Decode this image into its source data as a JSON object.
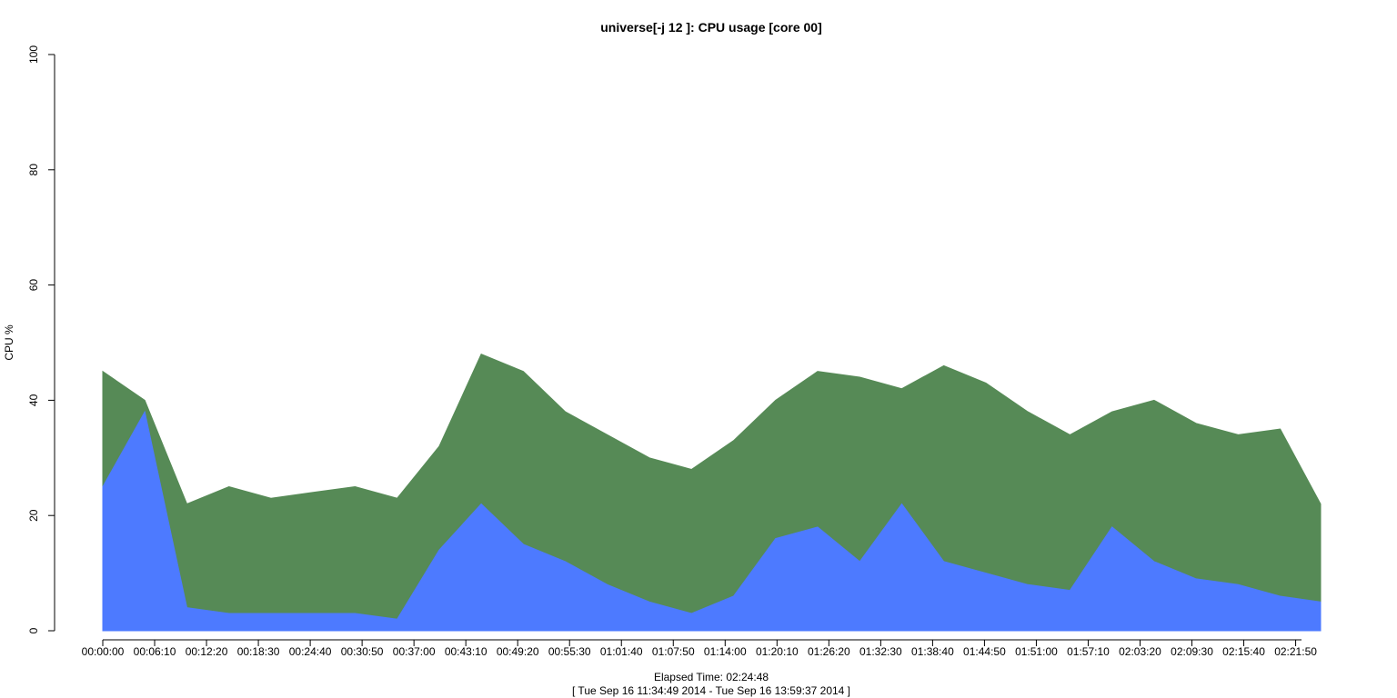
{
  "chart_data": {
    "type": "area",
    "title": "universe[-j 12  ]: CPU usage [core 00]",
    "ylabel": "CPU %",
    "xlabel": "Elapsed Time: 02:24:48",
    "xlabel_range": "[ Tue Sep 16 11:34:49 2014 - Tue Sep 16 13:59:37 2014 ]",
    "ylim": [
      0,
      100
    ],
    "yticks": [
      0,
      20,
      40,
      60,
      80,
      100
    ],
    "x_range_seconds": [
      0,
      8688
    ],
    "xticks": [
      "00:00:00",
      "00:06:10",
      "00:12:20",
      "00:18:30",
      "00:24:40",
      "00:30:50",
      "00:37:00",
      "00:43:10",
      "00:49:20",
      "00:55:30",
      "01:01:40",
      "01:07:50",
      "01:14:00",
      "01:20:10",
      "01:26:20",
      "01:32:30",
      "01:38:40",
      "01:44:50",
      "01:51:00",
      "01:57:10",
      "02:03:20",
      "02:09:30",
      "02:15:40",
      "02:21:50"
    ],
    "grid": false,
    "legend": "none",
    "colors": {
      "total": "#568a56",
      "user": "#4d7aff",
      "accent": "#22ccdd"
    },
    "series": [
      {
        "x": [
          0,
          300,
          600,
          900,
          1200,
          1500,
          1800,
          2100,
          2400,
          2700,
          3000,
          3300,
          3600,
          3900,
          4200,
          4500,
          4800,
          5100,
          5400,
          5700,
          6000,
          6300,
          6600,
          6900,
          7200,
          7500,
          7800,
          8100,
          8400,
          8688
        ],
        "values": [
          45,
          40,
          22,
          25,
          23,
          24,
          25,
          23,
          32,
          48,
          45,
          38,
          34,
          30,
          28,
          33,
          40,
          45,
          44,
          42,
          46,
          43,
          38,
          34,
          38,
          40,
          36,
          34,
          35,
          22
        ]
      },
      {
        "x": [
          0,
          300,
          600,
          900,
          1200,
          1500,
          1800,
          2100,
          2400,
          2700,
          3000,
          3300,
          3600,
          3900,
          4200,
          4500,
          4800,
          5100,
          5400,
          5700,
          6000,
          6300,
          6600,
          6900,
          7200,
          7500,
          7800,
          8100,
          8400,
          8688
        ],
        "values": [
          25,
          38,
          4,
          3,
          3,
          3,
          3,
          2,
          14,
          22,
          15,
          12,
          8,
          5,
          3,
          6,
          16,
          18,
          12,
          22,
          12,
          10,
          8,
          7,
          18,
          12,
          9,
          8,
          6,
          5
        ]
      }
    ]
  }
}
